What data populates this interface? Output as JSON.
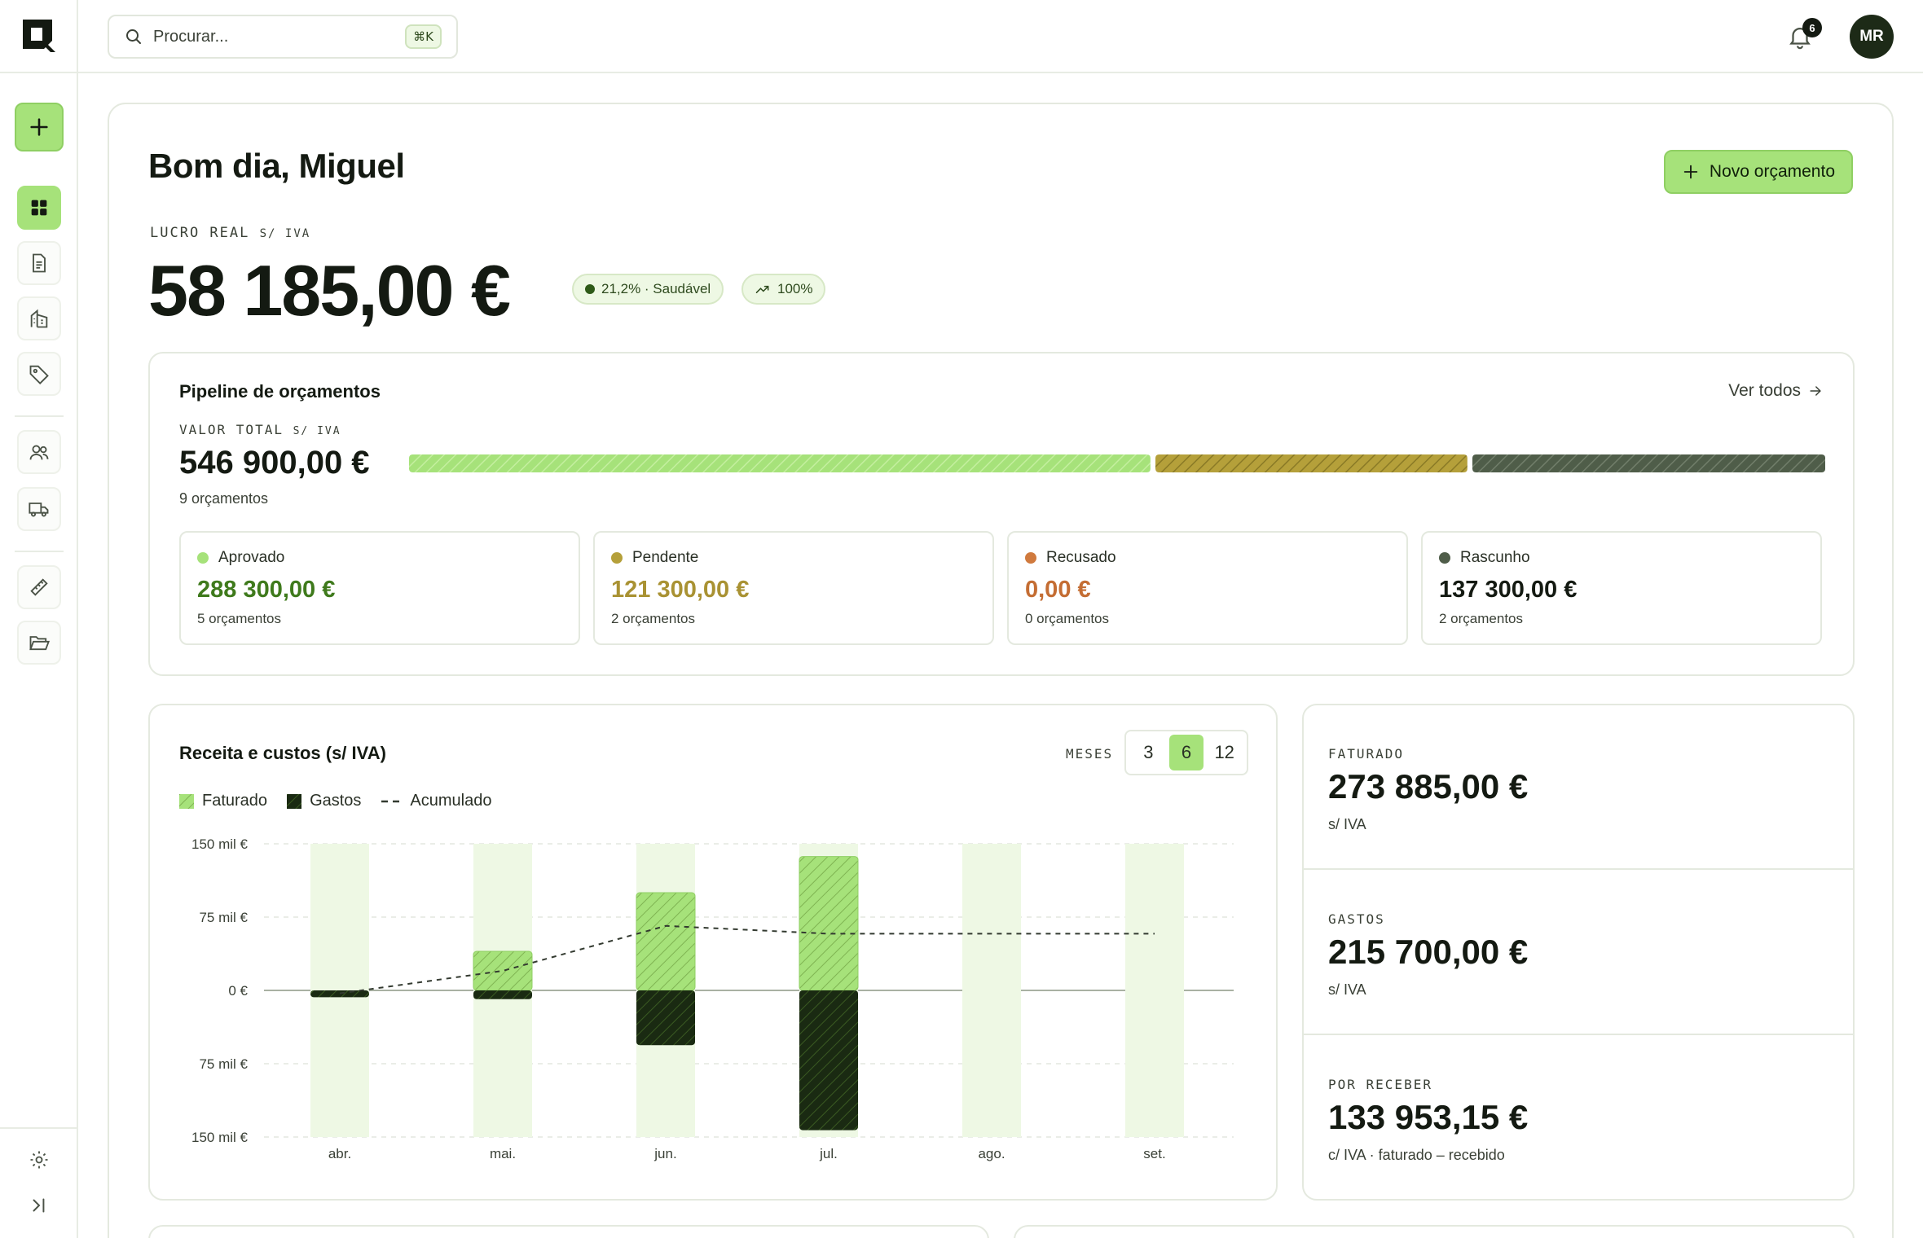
{
  "search": {
    "placeholder": "Procurar...",
    "shortcut": "⌘K"
  },
  "notifications": {
    "count": "6"
  },
  "user": {
    "initials": "MR"
  },
  "greeting": "Bom dia, Miguel",
  "new_quote_label": "Novo orçamento",
  "profit": {
    "label": "LUCRO REAL",
    "label_suffix": "S/ IVA",
    "value": "58 185,00 €",
    "health_badge": "21,2% · Saudável",
    "trend_badge": "100%"
  },
  "pipeline": {
    "title": "Pipeline de orçamentos",
    "view_all": "Ver todos",
    "total_label": "VALOR TOTAL",
    "total_label_suffix": "S/ IVA",
    "total_value": "546 900,00 €",
    "count": "9 orçamentos",
    "segments": [
      {
        "status": "approved",
        "value": 288300,
        "color": "#a6e27a"
      },
      {
        "status": "pending",
        "value": 121300,
        "color": "#b5a03a"
      },
      {
        "status": "draft",
        "value": 137300,
        "color": "#4f5d49"
      }
    ],
    "cards": [
      {
        "label": "Aprovado",
        "value": "288 300,00 €",
        "count": "5 orçamentos",
        "dot": "#a6e27a",
        "value_color": "#3f7a1c"
      },
      {
        "label": "Pendente",
        "value": "121 300,00 €",
        "count": "2 orçamentos",
        "dot": "#b5a03a",
        "value_color": "#a99233"
      },
      {
        "label": "Recusado",
        "value": "0,00 €",
        "count": "0 orçamentos",
        "dot": "#d07a3e",
        "value_color": "#c46d33"
      },
      {
        "label": "Rascunho",
        "value": "137 300,00 €",
        "count": "2 orçamentos",
        "dot": "#4f5d49",
        "value_color": "#141a12"
      }
    ]
  },
  "revenue_chart": {
    "title": "Receita e custos (s/ IVA)",
    "months_label": "MESES",
    "month_options": [
      "3",
      "6",
      "12"
    ],
    "selected_months": "6",
    "legend": {
      "billed": "Faturado",
      "expenses": "Gastos",
      "cumulative": "Acumulado"
    }
  },
  "chart_data": {
    "type": "bar",
    "title": "Receita e custos (s/ IVA)",
    "categories": [
      "abr.",
      "mai.",
      "jun.",
      "jul.",
      "ago.",
      "set."
    ],
    "y_ticks": [
      "150 mil €",
      "75 mil €",
      "0 €",
      "75 mil €",
      "150 mil €"
    ],
    "ylim": [
      -150000,
      150000
    ],
    "series": [
      {
        "name": "Faturado",
        "values": [
          0,
          40000,
          100000,
          137000,
          0,
          0
        ],
        "color": "#a6e27a"
      },
      {
        "name": "Gastos",
        "values": [
          -7000,
          -9000,
          -56000,
          -143000,
          0,
          0
        ],
        "color": "#1a2a12"
      },
      {
        "name": "Acumulado",
        "values": [
          -3000,
          20000,
          66000,
          58000,
          58000,
          58000
        ],
        "color": "#333a30"
      }
    ],
    "grid": true,
    "legend_position": "top-left"
  },
  "kpis": [
    {
      "label": "FATURADO",
      "value": "273 885,00 €",
      "sub": "s/ IVA"
    },
    {
      "label": "GASTOS",
      "value": "215 700,00 €",
      "sub": "s/ IVA"
    },
    {
      "label": "POR RECEBER",
      "value": "133 953,15 €",
      "sub": "c/ IVA · faturado – recebido"
    }
  ]
}
